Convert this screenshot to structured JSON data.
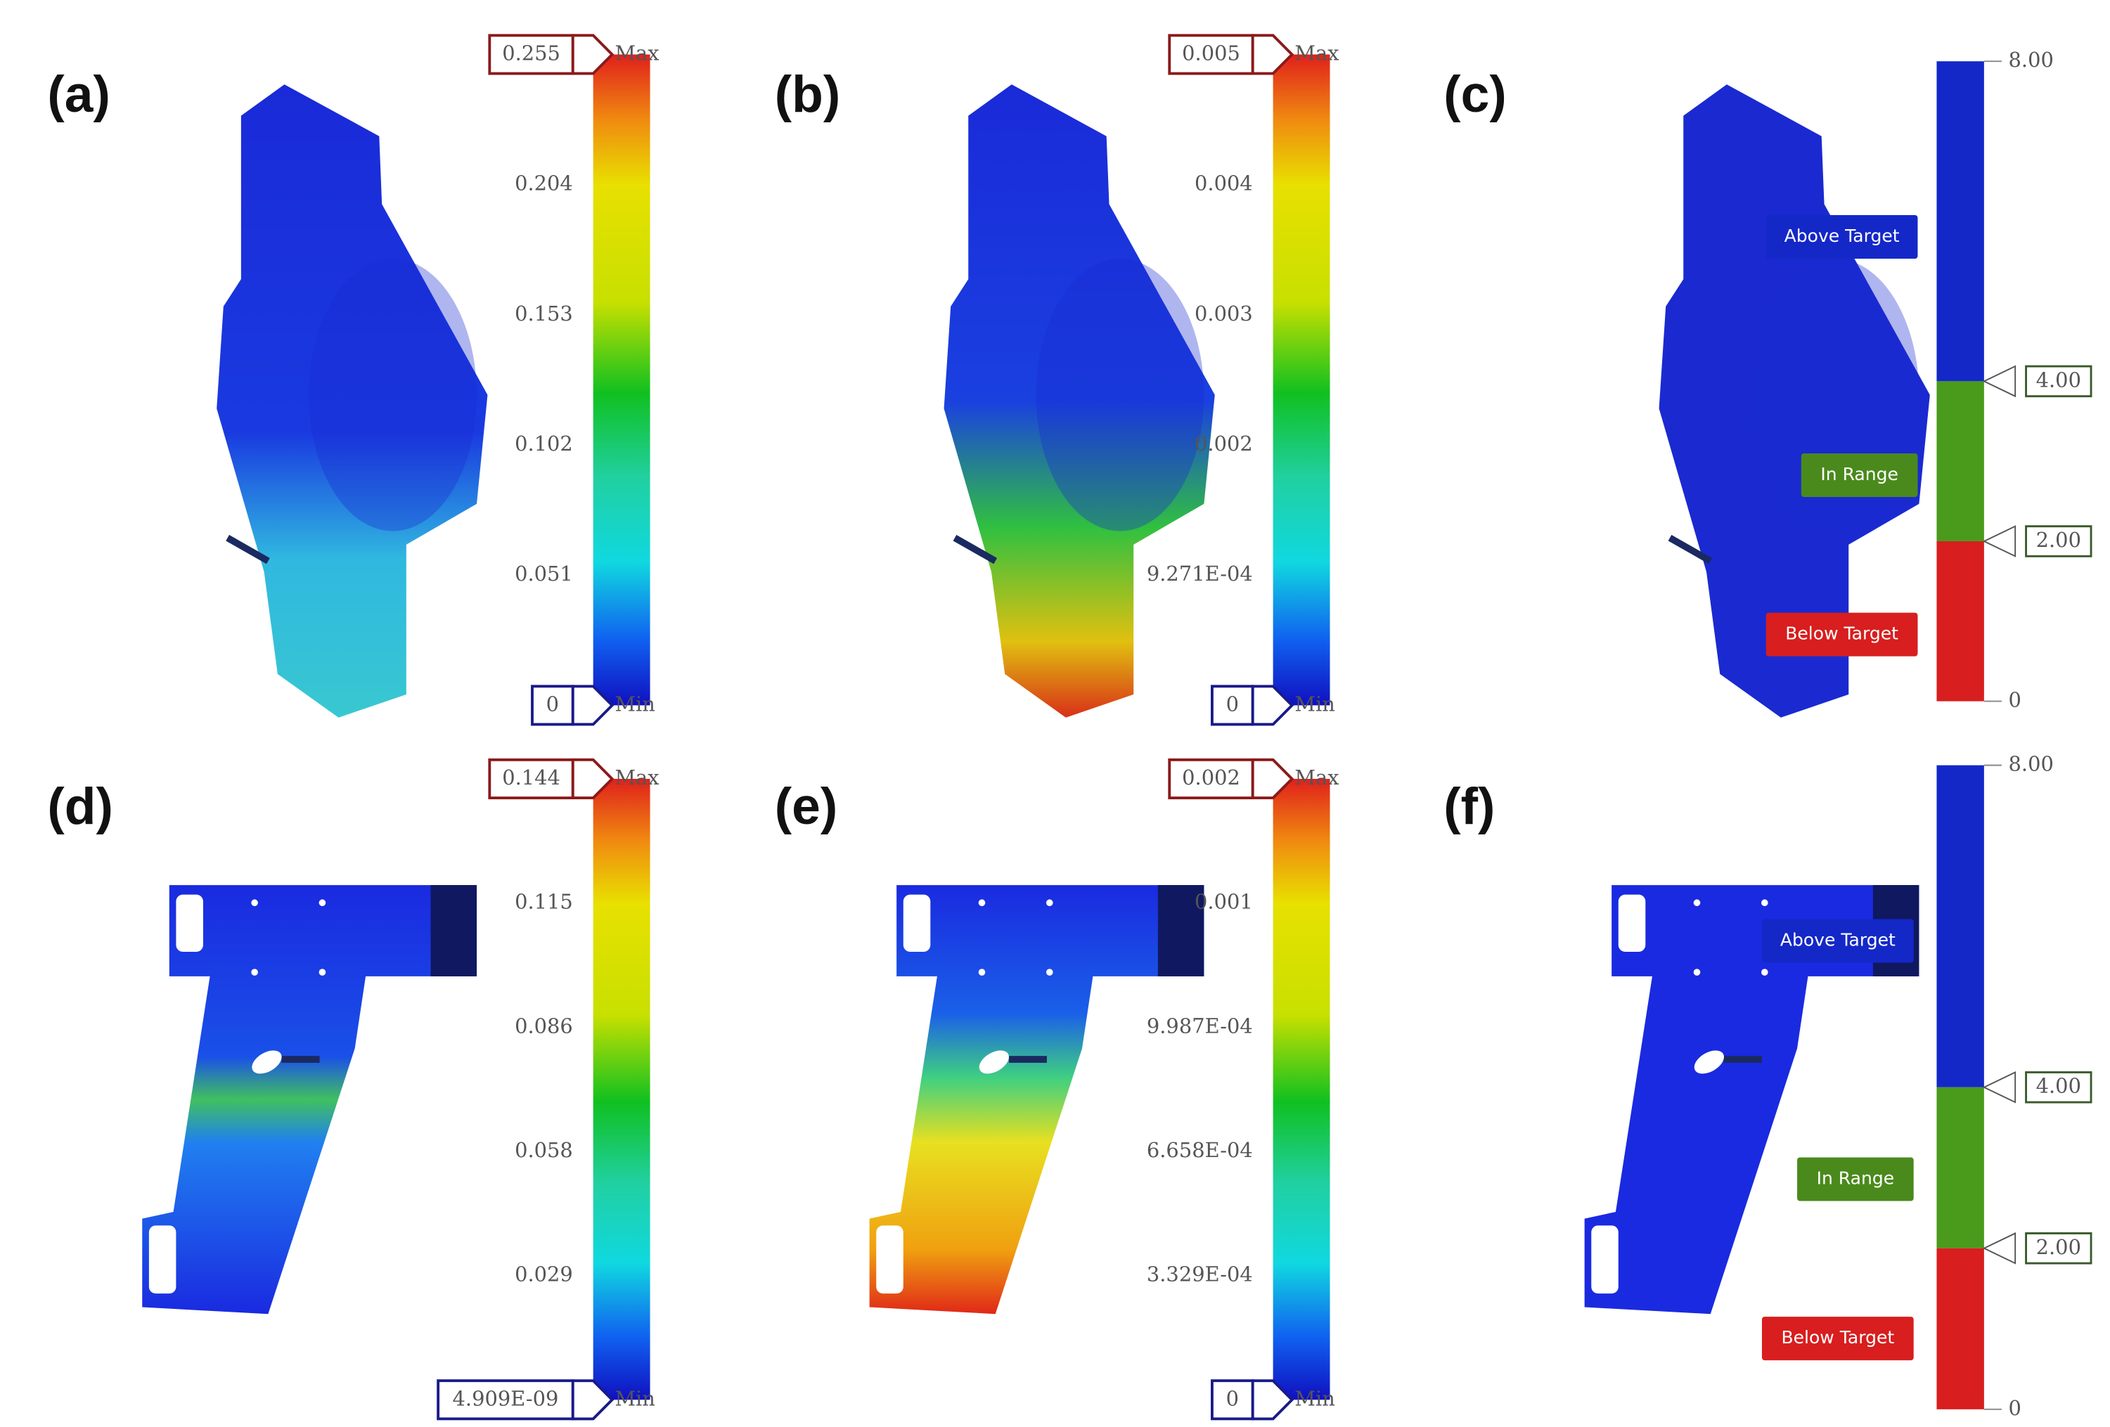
{
  "panels": [
    {
      "label": "(a)",
      "kind": "stress",
      "max_value": "0.255",
      "max_label": "Max",
      "ticks": [
        "0.204",
        "0.153",
        "0.102",
        "0.051"
      ],
      "min_value": "0",
      "min_label": "Min"
    },
    {
      "label": "(b)",
      "kind": "stress",
      "max_value": "0.005",
      "max_label": "Max",
      "ticks": [
        "0.004",
        "0.003",
        "0.002",
        "9.271E-04"
      ],
      "min_value": "0",
      "min_label": "Min"
    },
    {
      "label": "(c)",
      "kind": "safety",
      "top": "8.00",
      "upper": "4.00",
      "lower": "2.00",
      "bottom": "0",
      "above": "Above Target",
      "range": "In Range",
      "below": "Below Target"
    },
    {
      "label": "(d)",
      "kind": "stress",
      "max_value": "0.144",
      "max_label": "Max",
      "ticks": [
        "0.115",
        "0.086",
        "0.058",
        "0.029"
      ],
      "min_value": "4.909E-09",
      "min_label": "Min"
    },
    {
      "label": "(e)",
      "kind": "stress",
      "max_value": "0.002",
      "max_label": "Max",
      "ticks": [
        "0.001",
        "9.987E-04",
        "6.658E-04",
        "3.329E-04"
      ],
      "min_value": "0",
      "min_label": "Min"
    },
    {
      "label": "(f)",
      "kind": "safety",
      "top": "8.00",
      "upper": "4.00",
      "lower": "2.00",
      "bottom": "0",
      "above": "Above Target",
      "range": "In Range",
      "below": "Below Target"
    }
  ]
}
